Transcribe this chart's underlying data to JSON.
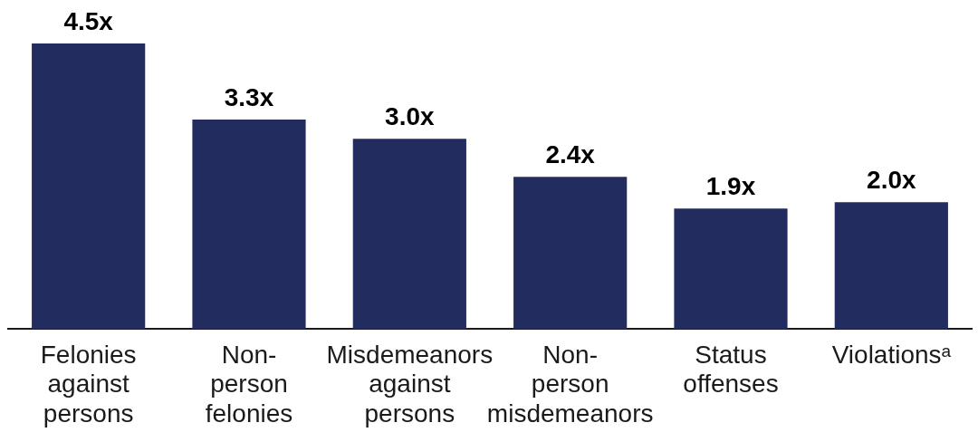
{
  "chart_data": {
    "type": "bar",
    "categories": [
      "Felonies against persons",
      "Non-person felonies",
      "Misdemeanors against persons",
      "Non-person misdemeanors",
      "Status offenses",
      "Violationsᵃ"
    ],
    "values": [
      4.5,
      3.3,
      3.0,
      2.4,
      1.9,
      2.0
    ],
    "value_labels": [
      "4.5x",
      "3.3x",
      "3.0x",
      "2.4x",
      "1.9x",
      "2.0x"
    ],
    "color": "#222c5f"
  }
}
